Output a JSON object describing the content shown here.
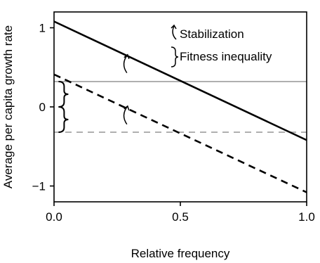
{
  "chart_data": {
    "type": "line",
    "xlabel": "Relative frequency",
    "ylabel": "Average per capita growth rate",
    "xlim": [
      0,
      1
    ],
    "ylim": [
      -1.2,
      1.2
    ],
    "x_ticks": [
      "0.0",
      "0.5",
      "1.0"
    ],
    "y_ticks": [
      "1",
      "0",
      "−1"
    ],
    "x_tick_values": [
      0,
      0.5,
      1
    ],
    "y_tick_values": [
      1,
      0,
      -1
    ],
    "series": [
      {
        "style": "solid-black",
        "x": [
          0,
          1
        ],
        "y": [
          1.08,
          -0.42
        ],
        "color": "#000000"
      },
      {
        "style": "dashed-black",
        "x": [
          0,
          1
        ],
        "y": [
          0.41,
          -1.08
        ],
        "color": "#000000"
      }
    ],
    "reference_lines": [
      {
        "style": "solid-gray",
        "y": 0.32,
        "color": "#b0b0b0"
      },
      {
        "style": "dashed-gray",
        "y": -0.32,
        "color": "#b0b0b0"
      }
    ],
    "annotations": {
      "stabilization_arrows": [
        {
          "x": 0.28,
          "y_from": 0.43,
          "y_to": 0.66
        },
        {
          "x": 0.28,
          "y_from": -0.22,
          "y_to": 0.01
        }
      ],
      "brackets": [
        {
          "x": 0.04,
          "y_from": 0.32,
          "y_to": 0.0
        },
        {
          "x": 0.04,
          "y_from": 0.0,
          "y_to": -0.32
        }
      ]
    },
    "legend": {
      "position": "top-right",
      "stabilization_label": "Stabilization",
      "fitness_label": "Fitness inequality"
    }
  }
}
